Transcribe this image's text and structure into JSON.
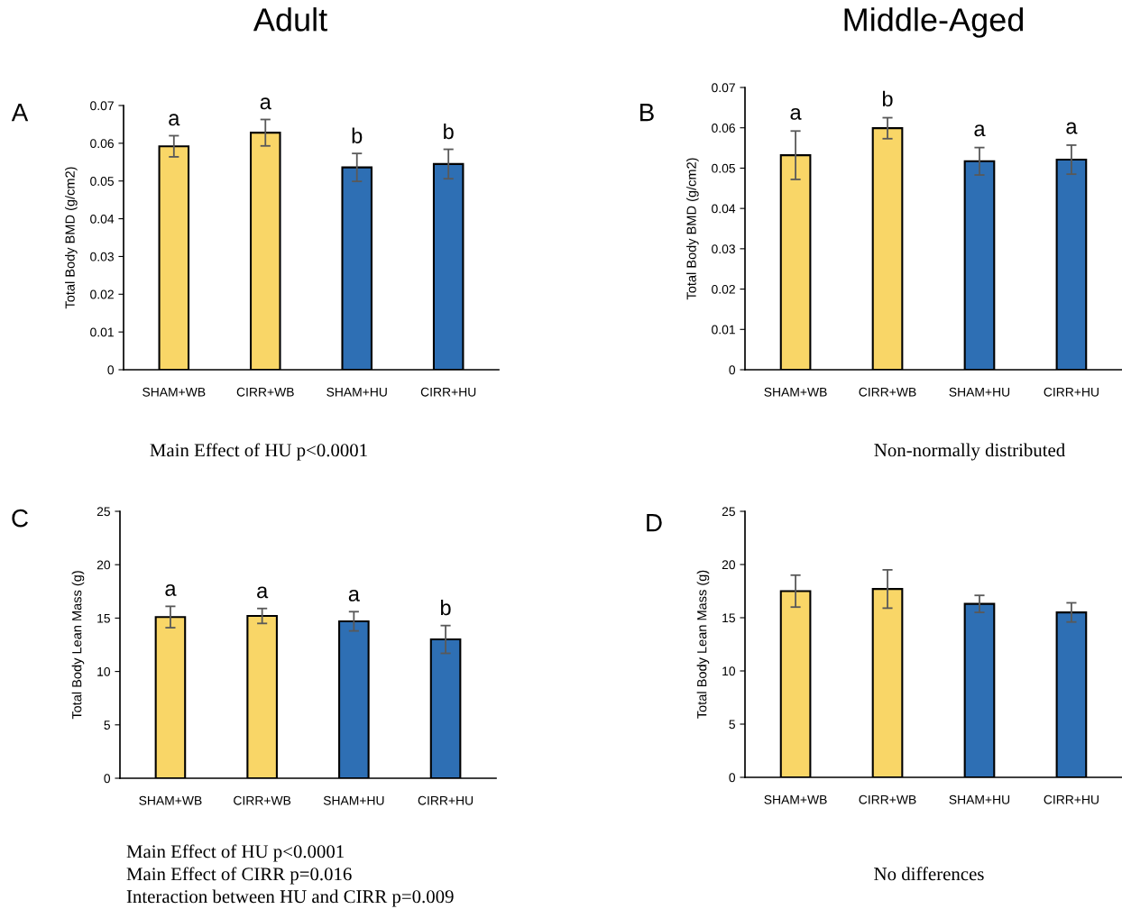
{
  "chart_data": [
    {
      "type": "bar",
      "title": "Adult",
      "ylabel": "Total Body BMD (g/cm2)",
      "categories": [
        "SHAM+WB",
        "CIRR+WB",
        "SHAM+HU",
        "CIRR+HU"
      ],
      "values": [
        0.0592,
        0.0628,
        0.0536,
        0.0545
      ],
      "errors": [
        0.0028,
        0.0035,
        0.0037,
        0.0039
      ],
      "colors": [
        "#f9d667",
        "#f9d667",
        "#2e6fb4",
        "#2e6fb4"
      ],
      "ylim": [
        0,
        0.07
      ],
      "yticks": [
        0,
        0.01,
        0.02,
        0.03,
        0.04,
        0.05,
        0.06,
        0.07
      ],
      "grid": false,
      "legend": false,
      "annotations": [
        "A",
        "Main Effect of HU p<0.0001",
        "a",
        "a",
        "b",
        "b"
      ]
    },
    {
      "type": "bar",
      "title": "Middle-Aged",
      "ylabel": "Total Body BMD (g/cm2)",
      "categories": [
        "SHAM+WB",
        "CIRR+WB",
        "SHAM+HU",
        "CIRR+HU"
      ],
      "values": [
        0.0532,
        0.0599,
        0.0517,
        0.0521
      ],
      "errors": [
        0.006,
        0.0026,
        0.0034,
        0.0036
      ],
      "colors": [
        "#f9d667",
        "#f9d667",
        "#2e6fb4",
        "#2e6fb4"
      ],
      "ylim": [
        0,
        0.07
      ],
      "yticks": [
        0,
        0.01,
        0.02,
        0.03,
        0.04,
        0.05,
        0.06,
        0.07
      ],
      "grid": false,
      "legend": false,
      "annotations": [
        "B",
        "Non-normally distributed",
        "a",
        "b",
        "a",
        "a"
      ]
    },
    {
      "type": "bar",
      "ylabel": "Total Body Lean Mass (g)",
      "categories": [
        "SHAM+WB",
        "CIRR+WB",
        "SHAM+HU",
        "CIRR+HU"
      ],
      "values": [
        15.1,
        15.2,
        14.7,
        13.0
      ],
      "errors": [
        1.0,
        0.7,
        0.9,
        1.3
      ],
      "colors": [
        "#f9d667",
        "#f9d667",
        "#2e6fb4",
        "#2e6fb4"
      ],
      "ylim": [
        0,
        25
      ],
      "yticks": [
        0,
        5,
        10,
        15,
        20,
        25
      ],
      "grid": false,
      "legend": false,
      "annotations": [
        "C",
        "Main Effect of HU p<0.0001",
        "Main Effect of CIRR p=0.016",
        "Interaction between HU and CIRR p=0.009",
        "a",
        "a",
        "a",
        "b"
      ]
    },
    {
      "type": "bar",
      "ylabel": "Total Body Lean Mass (g)",
      "categories": [
        "SHAM+WB",
        "CIRR+WB",
        "SHAM+HU",
        "CIRR+HU"
      ],
      "values": [
        17.5,
        17.7,
        16.3,
        15.5
      ],
      "errors": [
        1.5,
        1.8,
        0.8,
        0.9
      ],
      "colors": [
        "#f9d667",
        "#f9d667",
        "#2e6fb4",
        "#2e6fb4"
      ],
      "ylim": [
        0,
        25
      ],
      "yticks": [
        0,
        5,
        10,
        15,
        20,
        25
      ],
      "grid": false,
      "legend": false,
      "annotations": [
        "D",
        "No differences"
      ]
    }
  ]
}
